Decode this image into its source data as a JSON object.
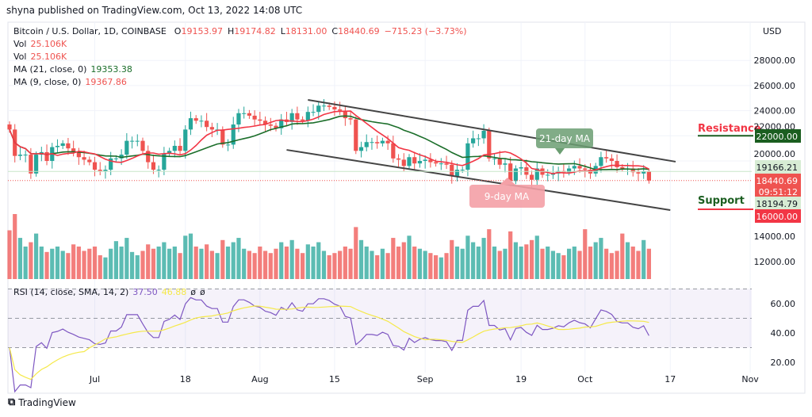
{
  "header": {
    "published": "shyna published on TradingView.com, Oct 13, 2022 14:08 UTC"
  },
  "legend": {
    "symbol": "Bitcoin / U.S. Dollar, 1D, COINBASE",
    "o_label": "O",
    "o": "19153.97",
    "h_label": "H",
    "h": "19174.82",
    "l_label": "L",
    "l": "18131.00",
    "c_label": "C",
    "c": "18440.69",
    "change": "−715.23 (−3.73%)",
    "vol1_label": "Vol",
    "vol1": "25.106K",
    "vol2_label": "Vol",
    "vol2": "25.106K",
    "ma21_label": "MA (21, close, 0)",
    "ma21": "19353.38",
    "ma9_label": "MA (9, close, 0)",
    "ma9": "19367.86",
    "rsi_label": "RSI (14, close, SMA, 14, 2)",
    "rsi": "37.50",
    "rsi_sma": "46.88",
    "rsi_extra1": "ø",
    "rsi_extra2": "ø"
  },
  "currency": "USD",
  "footer": {
    "brand": "TradingView"
  },
  "colors": {
    "up": "#26a69a",
    "down": "#ef5350",
    "ma21": "#1b6e2a",
    "ma9": "#f23645",
    "rsi": "#7e57c2",
    "rsi_sma": "#f5e94a",
    "resistance": "#1b5e20",
    "support": "#f23645"
  },
  "chart_data": {
    "type": "candlestick",
    "start_date": "2022-06-15",
    "closes": [
      22500,
      20400,
      20500,
      20500,
      19000,
      20500,
      20700,
      20000,
      21100,
      21200,
      21400,
      21000,
      20700,
      20300,
      20100,
      19900,
      19300,
      19200,
      19300,
      20200,
      20200,
      20500,
      21600,
      21600,
      21600,
      20800,
      19900,
      19300,
      19300,
      20600,
      20800,
      21200,
      20800,
      22500,
      23400,
      23200,
      23200,
      22700,
      22500,
      22500,
      21300,
      21300,
      22900,
      23800,
      23800,
      23600,
      23300,
      23200,
      22900,
      22800,
      22600,
      23300,
      23100,
      23800,
      23300,
      23200,
      23900,
      23900,
      24400,
      24400,
      24300,
      24100,
      24000,
      23400,
      23300,
      20800,
      21100,
      21500,
      21500,
      21400,
      21600,
      21400,
      20200,
      20100,
      19600,
      20300,
      19800,
      20000,
      20100,
      19900,
      19800,
      19800,
      19700,
      18800,
      19300,
      19300,
      21400,
      21800,
      21800,
      22400,
      20200,
      20200,
      19700,
      19800,
      18400,
      19400,
      19500,
      18900,
      18500,
      19400,
      18900,
      18900,
      19000,
      19200,
      19100,
      19400,
      19600,
      19400,
      19300,
      19000,
      19600,
      20300,
      20200,
      20000,
      19500,
      19400,
      19400,
      19100,
      19000,
      19150,
      18440
    ],
    "volumes": [
      45,
      60,
      38,
      30,
      34,
      42,
      30,
      25,
      28,
      30,
      26,
      24,
      32,
      30,
      26,
      28,
      30,
      22,
      20,
      28,
      35,
      30,
      38,
      25,
      22,
      26,
      32,
      28,
      30,
      34,
      28,
      30,
      24,
      40,
      42,
      30,
      28,
      32,
      26,
      24,
      36,
      30,
      34,
      38,
      28,
      26,
      24,
      30,
      26,
      24,
      28,
      34,
      30,
      36,
      28,
      24,
      32,
      30,
      34,
      26,
      22,
      24,
      26,
      30,
      28,
      48,
      36,
      30,
      26,
      22,
      28,
      24,
      38,
      30,
      34,
      40,
      30,
      28,
      26,
      24,
      22,
      20,
      24,
      36,
      30,
      28,
      40,
      34,
      30,
      38,
      46,
      30,
      26,
      28,
      44,
      34,
      30,
      32,
      36,
      40,
      28,
      30,
      26,
      24,
      22,
      28,
      30,
      26,
      46,
      30,
      34,
      38,
      28,
      24,
      26,
      42,
      34,
      30,
      26,
      36,
      28
    ],
    "ma_series": [
      "MA (21, close, 0)",
      "MA (9, close, 0)"
    ],
    "price_ticks": [
      28000,
      26000,
      24000,
      22000,
      20000,
      14000,
      12000
    ],
    "price_labels": [
      {
        "value": "22000.00",
        "kind": "resistance"
      },
      {
        "value": "19166.21",
        "kind": "ma"
      },
      {
        "value": "18440.69",
        "kind": "last",
        "countdown": "09:51:12"
      },
      {
        "value": "18194.79",
        "kind": "ma"
      },
      {
        "value": "16000.00",
        "kind": "support"
      }
    ],
    "rsi_ticks": [
      60,
      40,
      20
    ],
    "rsi_ticks_text": [
      "60.00",
      "40.00",
      "20.00"
    ],
    "rsi_band": [
      30,
      70
    ],
    "x_ticks": [
      {
        "date": "2022-07-01",
        "label": "Jul"
      },
      {
        "date": "2022-07-18",
        "label": "18"
      },
      {
        "date": "2022-08-01",
        "label": "Aug"
      },
      {
        "date": "2022-08-15",
        "label": "15"
      },
      {
        "date": "2022-09-01",
        "label": "Sep"
      },
      {
        "date": "2022-09-19",
        "label": "19"
      },
      {
        "date": "2022-10-01",
        "label": "Oct"
      },
      {
        "date": "2022-10-17",
        "label": "17"
      },
      {
        "date": "2022-11-01",
        "label": "Nov"
      }
    ],
    "channel": {
      "upper": [
        [
          "2022-08-10",
          24860
        ],
        [
          "2022-10-18",
          19940
        ]
      ],
      "lower": [
        [
          "2022-08-06",
          20880
        ],
        [
          "2022-10-17",
          16090
        ]
      ]
    },
    "annotations": [
      {
        "text": "Resistance",
        "price": 22000
      },
      {
        "text": "Support",
        "price": 16000
      },
      {
        "text": "21-day MA",
        "kind": "ma21"
      },
      {
        "text": "9-day MA",
        "kind": "ma9"
      }
    ]
  }
}
